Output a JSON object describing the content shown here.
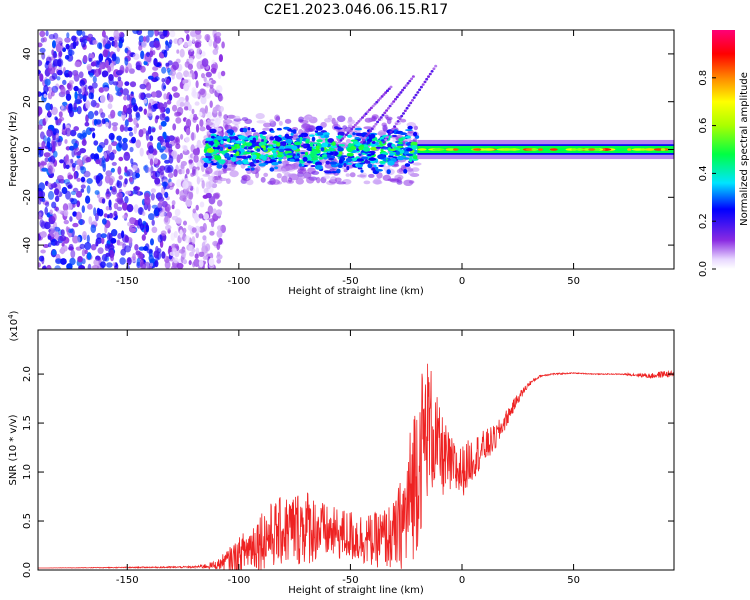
{
  "title": "C2E1.2023.046.06.15.R17",
  "chart_data": [
    {
      "type": "heatmap",
      "xlabel": "Height of straight line (km)",
      "ylabel": "Frequency (Hz)",
      "xlim": [
        -190,
        95
      ],
      "ylim": [
        -50,
        50
      ],
      "x_ticks": [
        -150,
        -100,
        -50,
        0,
        50
      ],
      "x_tick_labels": [
        "-150",
        "-100",
        "-50",
        "0",
        "50"
      ],
      "y_ticks": [
        -40,
        -20,
        0,
        20,
        40
      ],
      "y_tick_labels": [
        "-40",
        "-20",
        "0",
        "20",
        "40"
      ],
      "colorbar": {
        "label": "Normalized spectral amplitude",
        "range": [
          0,
          1
        ],
        "ticks": [
          0.0,
          0.2,
          0.4,
          0.6,
          0.8
        ],
        "tick_labels": [
          "0.0",
          "0.2",
          "0.4",
          "0.6",
          "0.8"
        ],
        "colormap": "rainbow (white-violet-blue-cyan-green-yellow-red-magenta)"
      },
      "regions": [
        {
          "x_range": [
            -190,
            -115
          ],
          "freq_range": [
            -50,
            50
          ],
          "amplitude": [
            0.05,
            0.3
          ]
        },
        {
          "x_range": [
            -115,
            -20
          ],
          "freq_range": [
            -10,
            10
          ],
          "amplitude": [
            0.2,
            0.6
          ]
        },
        {
          "x_range": [
            -20,
            95
          ],
          "freq_range": [
            -1.5,
            1.5
          ],
          "amplitude": [
            0.5,
            0.9
          ]
        }
      ]
    },
    {
      "type": "line",
      "xlabel": "Height of straight line (km)",
      "ylabel": "SNR (10 * v/v)",
      "y_scale_label": "(x10",
      "y_scale_exp": "4",
      "y_scale_close": ")",
      "xlim": [
        -190,
        95
      ],
      "ylim": [
        0,
        2.45
      ],
      "x_ticks": [
        -150,
        -100,
        -50,
        0,
        50
      ],
      "x_tick_labels": [
        "-150",
        "-100",
        "-50",
        "0",
        "50"
      ],
      "y_ticks": [
        0.0,
        0.5,
        1.0,
        1.5,
        2.0
      ],
      "y_tick_labels": [
        "0.0",
        "0.5",
        "1.0",
        "1.5",
        "2.0"
      ],
      "color": "#ee2222",
      "x": [
        -190,
        -120,
        -110,
        -100,
        -90,
        -80,
        -70,
        -60,
        -50,
        -40,
        -30,
        -25,
        -20,
        -15,
        -10,
        -5,
        0,
        5,
        10,
        15,
        20,
        25,
        30,
        35,
        40,
        50,
        60,
        70,
        80,
        85,
        90,
        95
      ],
      "y": [
        0.02,
        0.03,
        0.05,
        0.15,
        0.32,
        0.4,
        0.45,
        0.38,
        0.35,
        0.3,
        0.35,
        0.55,
        1.1,
        1.5,
        1.2,
        1.05,
        1.0,
        1.15,
        1.25,
        1.35,
        1.55,
        1.75,
        1.9,
        1.98,
        2.0,
        2.01,
        2.0,
        2.0,
        1.99,
        1.98,
        2.0,
        2.0
      ],
      "noise": [
        0.0,
        0.01,
        0.05,
        0.2,
        0.35,
        0.4,
        0.45,
        0.3,
        0.3,
        0.3,
        0.4,
        0.7,
        1.0,
        0.8,
        0.5,
        0.35,
        0.3,
        0.25,
        0.2,
        0.15,
        0.1,
        0.06,
        0.03,
        0.01,
        0.01,
        0.005,
        0.005,
        0.005,
        0.02,
        0.03,
        0.04,
        0.03
      ]
    }
  ]
}
